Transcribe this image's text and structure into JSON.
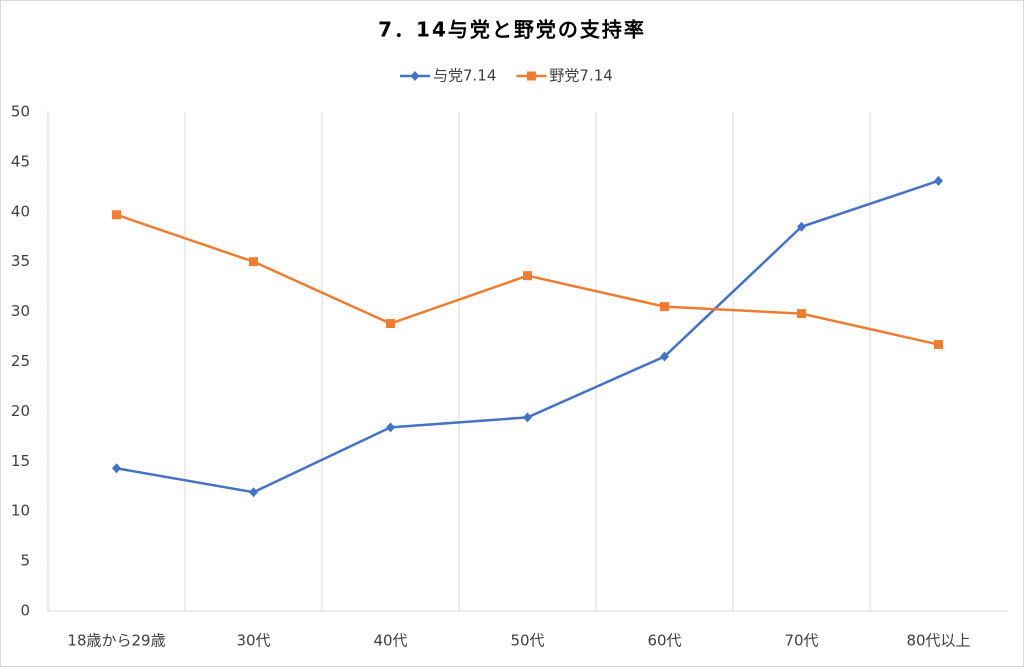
{
  "chart_data": {
    "type": "line",
    "title": "7．14与党と野党の支持率",
    "categories": [
      "18歳から29歳",
      "30代",
      "40代",
      "50代",
      "60代",
      "70代",
      "80代以上"
    ],
    "series": [
      {
        "name": "与党7.14",
        "color": "#4472c4",
        "marker": "diamond",
        "values": [
          14.3,
          11.9,
          18.4,
          19.4,
          25.5,
          38.5,
          43.1
        ]
      },
      {
        "name": "野党7.14",
        "color": "#ed7d31",
        "marker": "square",
        "values": [
          39.7,
          35.0,
          28.8,
          33.6,
          30.5,
          29.8,
          26.7
        ]
      }
    ],
    "ylim": [
      0,
      50
    ],
    "yticks": [
      0,
      5,
      10,
      15,
      20,
      25,
      30,
      35,
      40,
      45,
      50
    ],
    "grid": "x",
    "legend": "top"
  }
}
